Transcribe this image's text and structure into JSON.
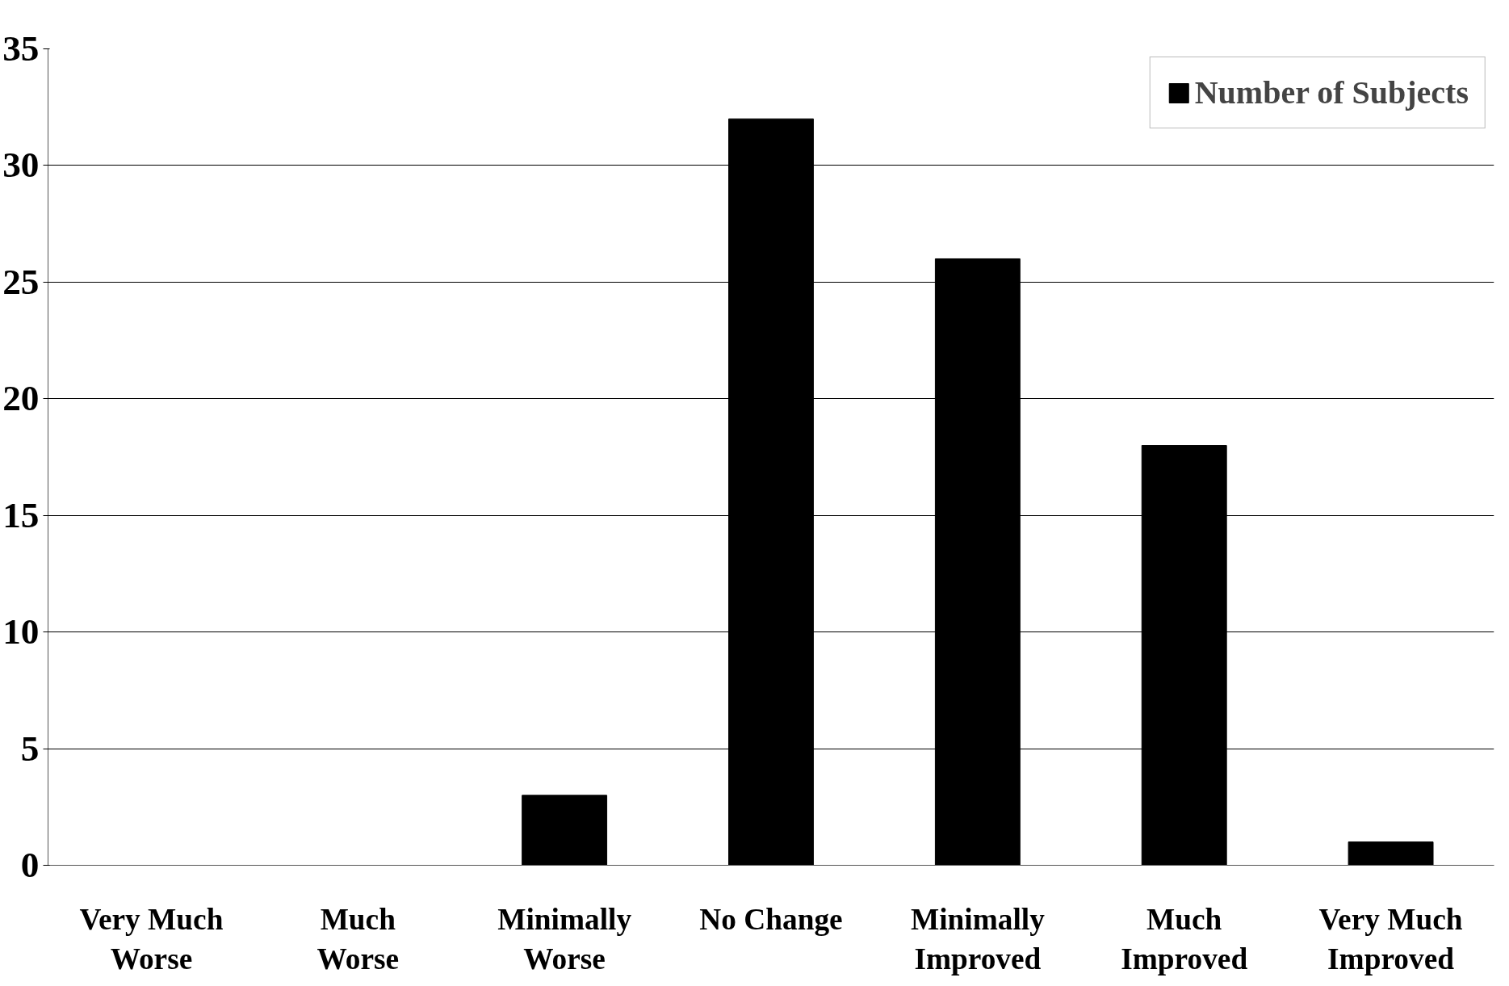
{
  "chart_data": {
    "type": "bar",
    "categories": [
      "Very Much Worse",
      "Much Worse",
      "Minimally Worse",
      "No Change",
      "Minimally Improved",
      "Much Improved",
      "Very Much Improved"
    ],
    "series": [
      {
        "name": "Number of Subjects",
        "color": "#000000",
        "values": [
          0,
          0,
          3,
          32,
          26,
          18,
          1
        ]
      }
    ],
    "ylim": [
      0,
      35
    ],
    "yticks": [
      0,
      5,
      10,
      15,
      20,
      25,
      30,
      35
    ],
    "grid": "y",
    "legend": "top right"
  }
}
